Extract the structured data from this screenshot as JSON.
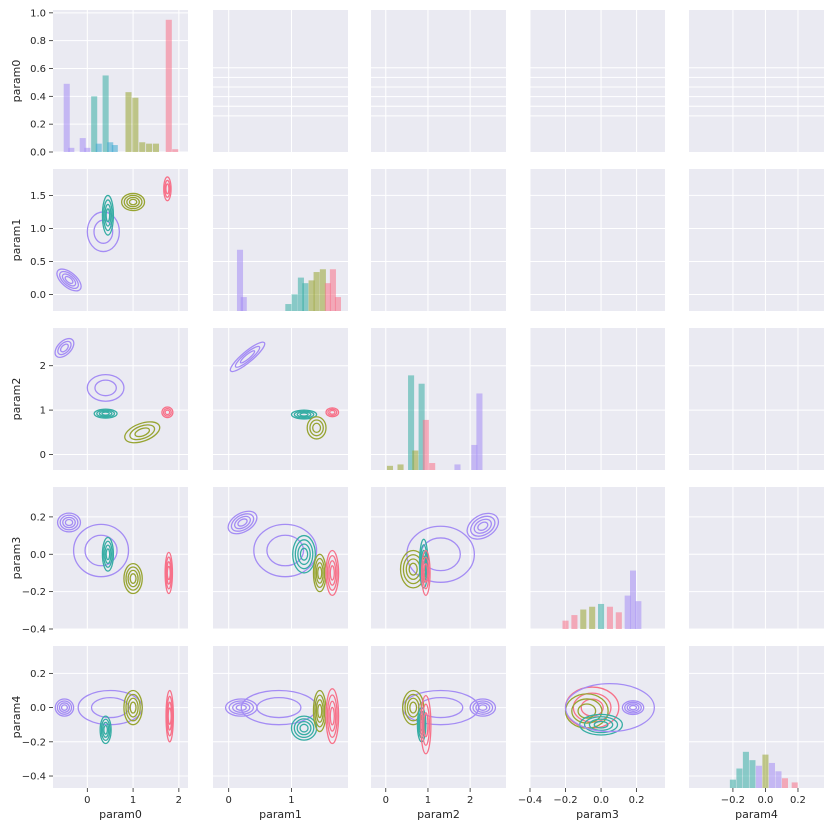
{
  "palette": {
    "c0": "#a48cf4",
    "c1": "#39a7d0",
    "c2": "#36ada4",
    "c3": "#97a431",
    "c4": "#f77189",
    "panel_bg": "#eaeaf2",
    "grid": "#ffffff"
  },
  "chart_data": {
    "type": "pairplot",
    "variables": [
      "param0",
      "param1",
      "param2",
      "param3",
      "param4"
    ],
    "hue_groups": [
      "c0",
      "c1",
      "c2",
      "c3",
      "c4"
    ],
    "ranges": {
      "param0": [
        -0.75,
        2.2
      ],
      "param1": [
        -0.25,
        1.9
      ],
      "param2": [
        -0.35,
        2.85
      ],
      "param3": [
        -0.4,
        0.36
      ],
      "param4": [
        -0.47,
        0.36
      ]
    },
    "ticks": {
      "param0": [
        "0",
        "1",
        "2"
      ],
      "param1": [
        "0",
        "1"
      ],
      "param2": [
        "0",
        "1",
        "2"
      ],
      "param3": [
        "−0.4",
        "−0.2",
        "0.0",
        "0.2"
      ],
      "param4": [
        "−0.2",
        "0.0",
        "0.2"
      ]
    },
    "y_ticks": {
      "param0": [
        "0.0",
        "0.2",
        "0.4",
        "0.6",
        "0.8",
        "1.0"
      ],
      "param1": [
        "0.0",
        "0.5",
        "1.0",
        "1.5"
      ],
      "param2": [
        "0",
        "1",
        "2"
      ],
      "param3": [
        "−0.4",
        "−0.2",
        "0.0",
        "0.2"
      ],
      "param4": [
        "−0.4",
        "−0.2",
        "0.0",
        "0.2"
      ]
    },
    "diag_histograms": [
      {
        "var": "param0",
        "ymax": 1.0,
        "bars": [
          {
            "x": -0.45,
            "h": 0.49,
            "g": "c0"
          },
          {
            "x": -0.35,
            "h": 0.03,
            "g": "c0"
          },
          {
            "x": -0.1,
            "h": 0.1,
            "g": "c0"
          },
          {
            "x": 0.0,
            "h": 0.03,
            "g": "c0"
          },
          {
            "x": 0.15,
            "h": 0.4,
            "g": "c2"
          },
          {
            "x": 0.25,
            "h": 0.06,
            "g": "c1"
          },
          {
            "x": 0.4,
            "h": 0.55,
            "g": "c2"
          },
          {
            "x": 0.5,
            "h": 0.07,
            "g": "c1"
          },
          {
            "x": 0.6,
            "h": 0.05,
            "g": "c1"
          },
          {
            "x": 0.9,
            "h": 0.43,
            "g": "c3"
          },
          {
            "x": 1.05,
            "h": 0.39,
            "g": "c3"
          },
          {
            "x": 1.2,
            "h": 0.07,
            "g": "c3"
          },
          {
            "x": 1.35,
            "h": 0.06,
            "g": "c3"
          },
          {
            "x": 1.5,
            "h": 0.06,
            "g": "c3"
          },
          {
            "x": 1.78,
            "h": 0.95,
            "g": "c4"
          },
          {
            "x": 1.92,
            "h": 0.02,
            "g": "c4"
          }
        ]
      },
      {
        "var": "param1",
        "ymax": 1.0,
        "bars": [
          {
            "x": 0.18,
            "h": 0.44,
            "g": "c0"
          },
          {
            "x": 0.24,
            "h": 0.1,
            "g": "c0"
          },
          {
            "x": 0.95,
            "h": 0.05,
            "g": "c2"
          },
          {
            "x": 1.05,
            "h": 0.12,
            "g": "c2"
          },
          {
            "x": 1.15,
            "h": 0.24,
            "g": "c2"
          },
          {
            "x": 1.22,
            "h": 0.2,
            "g": "c2"
          },
          {
            "x": 1.32,
            "h": 0.22,
            "g": "c3"
          },
          {
            "x": 1.4,
            "h": 0.28,
            "g": "c3"
          },
          {
            "x": 1.5,
            "h": 0.3,
            "g": "c3"
          },
          {
            "x": 1.58,
            "h": 0.2,
            "g": "c4"
          },
          {
            "x": 1.66,
            "h": 0.3,
            "g": "c4"
          },
          {
            "x": 1.74,
            "h": 0.1,
            "g": "c4"
          }
        ]
      },
      {
        "var": "param2",
        "ymax": 1.0,
        "bars": [
          {
            "x": 0.1,
            "h": 0.03,
            "g": "c3"
          },
          {
            "x": 0.35,
            "h": 0.04,
            "g": "c3"
          },
          {
            "x": 0.6,
            "h": 0.68,
            "g": "c2"
          },
          {
            "x": 0.7,
            "h": 0.14,
            "g": "c3"
          },
          {
            "x": 0.85,
            "h": 0.62,
            "g": "c2"
          },
          {
            "x": 0.95,
            "h": 0.36,
            "g": "c4"
          },
          {
            "x": 1.1,
            "h": 0.05,
            "g": "c4"
          },
          {
            "x": 1.7,
            "h": 0.04,
            "g": "c0"
          },
          {
            "x": 2.1,
            "h": 0.18,
            "g": "c0"
          },
          {
            "x": 2.22,
            "h": 0.55,
            "g": "c0"
          }
        ]
      },
      {
        "var": "param3",
        "ymax": 1.0,
        "bars": [
          {
            "x": -0.2,
            "h": 0.06,
            "g": "c4"
          },
          {
            "x": -0.15,
            "h": 0.1,
            "g": "c4"
          },
          {
            "x": -0.1,
            "h": 0.14,
            "g": "c3"
          },
          {
            "x": -0.05,
            "h": 0.16,
            "g": "c3"
          },
          {
            "x": 0.0,
            "h": 0.18,
            "g": "c2"
          },
          {
            "x": 0.05,
            "h": 0.16,
            "g": "c4"
          },
          {
            "x": 0.1,
            "h": 0.12,
            "g": "c4"
          },
          {
            "x": 0.15,
            "h": 0.24,
            "g": "c0"
          },
          {
            "x": 0.18,
            "h": 0.42,
            "g": "c0"
          },
          {
            "x": 0.21,
            "h": 0.2,
            "g": "c0"
          }
        ]
      },
      {
        "var": "param4",
        "ymax": 1.0,
        "bars": [
          {
            "x": -0.2,
            "h": 0.06,
            "g": "c2"
          },
          {
            "x": -0.16,
            "h": 0.14,
            "g": "c2"
          },
          {
            "x": -0.12,
            "h": 0.26,
            "g": "c2"
          },
          {
            "x": -0.08,
            "h": 0.2,
            "g": "c2"
          },
          {
            "x": -0.04,
            "h": 0.16,
            "g": "c0"
          },
          {
            "x": 0.0,
            "h": 0.24,
            "g": "c3"
          },
          {
            "x": 0.04,
            "h": 0.18,
            "g": "c0"
          },
          {
            "x": 0.08,
            "h": 0.12,
            "g": "c0"
          },
          {
            "x": 0.12,
            "h": 0.07,
            "g": "c4"
          },
          {
            "x": 0.18,
            "h": 0.04,
            "g": "c4"
          }
        ]
      }
    ],
    "kde_clusters": {
      "param0-param1": [
        {
          "g": "c0",
          "x": -0.4,
          "y": 0.22,
          "sx": 0.16,
          "sy": 0.22,
          "rot": -50,
          "n": 4
        },
        {
          "g": "c0",
          "x": 0.35,
          "y": 0.95,
          "sx": 0.35,
          "sy": 0.3,
          "rot": 0,
          "n": 2
        },
        {
          "g": "c2",
          "x": 0.45,
          "y": 1.2,
          "sx": 0.12,
          "sy": 0.3,
          "rot": 0,
          "n": 4
        },
        {
          "g": "c3",
          "x": 1.0,
          "y": 1.4,
          "sx": 0.25,
          "sy": 0.13,
          "rot": 0,
          "n": 4
        },
        {
          "g": "c4",
          "x": 1.75,
          "y": 1.6,
          "sx": 0.08,
          "sy": 0.18,
          "rot": 0,
          "n": 3
        }
      ],
      "param0-param2": [
        {
          "g": "c0",
          "x": -0.5,
          "y": 2.4,
          "sx": 0.25,
          "sy": 0.15,
          "rot": -45,
          "n": 3
        },
        {
          "g": "c0",
          "x": 0.4,
          "y": 1.5,
          "sx": 0.4,
          "sy": 0.3,
          "rot": 0,
          "n": 2
        },
        {
          "g": "c2",
          "x": 0.4,
          "y": 0.92,
          "sx": 0.25,
          "sy": 0.1,
          "rot": 0,
          "n": 4
        },
        {
          "g": "c3",
          "x": 1.2,
          "y": 0.5,
          "sx": 0.4,
          "sy": 0.2,
          "rot": -20,
          "n": 3
        },
        {
          "g": "c4",
          "x": 1.75,
          "y": 0.95,
          "sx": 0.12,
          "sy": 0.12,
          "rot": 0,
          "n": 3
        }
      ],
      "param0-param3": [
        {
          "g": "c0",
          "x": -0.4,
          "y": 0.17,
          "sx": 0.25,
          "sy": 0.05,
          "rot": 0,
          "n": 4
        },
        {
          "g": "c0",
          "x": 0.3,
          "y": 0.02,
          "sx": 0.6,
          "sy": 0.14,
          "rot": 0,
          "n": 2
        },
        {
          "g": "c2",
          "x": 0.45,
          "y": 0.0,
          "sx": 0.12,
          "sy": 0.09,
          "rot": 0,
          "n": 4
        },
        {
          "g": "c3",
          "x": 1.0,
          "y": -0.13,
          "sx": 0.2,
          "sy": 0.08,
          "rot": 0,
          "n": 4
        },
        {
          "g": "c4",
          "x": 1.78,
          "y": -0.1,
          "sx": 0.08,
          "sy": 0.11,
          "rot": 0,
          "n": 4
        }
      ],
      "param0-param4": [
        {
          "g": "c0",
          "x": -0.5,
          "y": 0.0,
          "sx": 0.2,
          "sy": 0.05,
          "rot": 0,
          "n": 4
        },
        {
          "g": "c0",
          "x": 0.5,
          "y": 0.0,
          "sx": 0.7,
          "sy": 0.1,
          "rot": 0,
          "n": 2
        },
        {
          "g": "c2",
          "x": 0.4,
          "y": -0.13,
          "sx": 0.12,
          "sy": 0.08,
          "rot": 0,
          "n": 4
        },
        {
          "g": "c3",
          "x": 1.0,
          "y": 0.0,
          "sx": 0.2,
          "sy": 0.1,
          "rot": 0,
          "n": 4
        },
        {
          "g": "c4",
          "x": 1.8,
          "y": -0.05,
          "sx": 0.08,
          "sy": 0.15,
          "rot": 0,
          "n": 4
        }
      ],
      "param1-param2": [
        {
          "g": "c0",
          "x": 0.3,
          "y": 2.2,
          "sx": 0.35,
          "sy": 0.12,
          "rot": -40,
          "n": 3
        },
        {
          "g": "c2",
          "x": 1.2,
          "y": 0.9,
          "sx": 0.2,
          "sy": 0.1,
          "rot": 0,
          "n": 4
        },
        {
          "g": "c3",
          "x": 1.4,
          "y": 0.6,
          "sx": 0.15,
          "sy": 0.25,
          "rot": 0,
          "n": 3
        },
        {
          "g": "c4",
          "x": 1.65,
          "y": 0.95,
          "sx": 0.1,
          "sy": 0.1,
          "rot": 0,
          "n": 3
        }
      ],
      "param1-param3": [
        {
          "g": "c0",
          "x": 0.22,
          "y": 0.17,
          "sx": 0.25,
          "sy": 0.05,
          "rot": -30,
          "n": 4
        },
        {
          "g": "c0",
          "x": 0.9,
          "y": 0.02,
          "sx": 0.5,
          "sy": 0.14,
          "rot": 0,
          "n": 2
        },
        {
          "g": "c2",
          "x": 1.2,
          "y": 0.0,
          "sx": 0.18,
          "sy": 0.1,
          "rot": 0,
          "n": 4
        },
        {
          "g": "c3",
          "x": 1.45,
          "y": -0.1,
          "sx": 0.1,
          "sy": 0.1,
          "rot": 0,
          "n": 4
        },
        {
          "g": "c4",
          "x": 1.65,
          "y": -0.1,
          "sx": 0.1,
          "sy": 0.12,
          "rot": 0,
          "n": 4
        }
      ],
      "param1-param4": [
        {
          "g": "c0",
          "x": 0.2,
          "y": 0.0,
          "sx": 0.25,
          "sy": 0.05,
          "rot": 0,
          "n": 4
        },
        {
          "g": "c0",
          "x": 0.8,
          "y": 0.0,
          "sx": 0.6,
          "sy": 0.1,
          "rot": 0,
          "n": 2
        },
        {
          "g": "c2",
          "x": 1.2,
          "y": -0.12,
          "sx": 0.2,
          "sy": 0.07,
          "rot": 0,
          "n": 4
        },
        {
          "g": "c3",
          "x": 1.45,
          "y": -0.02,
          "sx": 0.1,
          "sy": 0.12,
          "rot": 0,
          "n": 4
        },
        {
          "g": "c4",
          "x": 1.65,
          "y": -0.05,
          "sx": 0.1,
          "sy": 0.16,
          "rot": 0,
          "n": 4
        }
      ],
      "param2-param3": [
        {
          "g": "c0",
          "x": 2.3,
          "y": 0.15,
          "sx": 0.4,
          "sy": 0.06,
          "rot": -30,
          "n": 4
        },
        {
          "g": "c0",
          "x": 1.3,
          "y": 0.0,
          "sx": 0.8,
          "sy": 0.15,
          "rot": 0,
          "n": 2
        },
        {
          "g": "c3",
          "x": 0.65,
          "y": -0.08,
          "sx": 0.3,
          "sy": 0.1,
          "rot": 0,
          "n": 4
        },
        {
          "g": "c2",
          "x": 0.9,
          "y": -0.05,
          "sx": 0.1,
          "sy": 0.13,
          "rot": 0,
          "n": 4
        },
        {
          "g": "c4",
          "x": 0.95,
          "y": -0.1,
          "sx": 0.1,
          "sy": 0.12,
          "rot": 0,
          "n": 3
        }
      ],
      "param2-param4": [
        {
          "g": "c0",
          "x": 2.3,
          "y": 0.0,
          "sx": 0.3,
          "sy": 0.05,
          "rot": 0,
          "n": 4
        },
        {
          "g": "c0",
          "x": 1.3,
          "y": 0.0,
          "sx": 0.9,
          "sy": 0.1,
          "rot": 0,
          "n": 2
        },
        {
          "g": "c3",
          "x": 0.65,
          "y": 0.0,
          "sx": 0.25,
          "sy": 0.1,
          "rot": 0,
          "n": 4
        },
        {
          "g": "c2",
          "x": 0.85,
          "y": -0.1,
          "sx": 0.1,
          "sy": 0.1,
          "rot": 0,
          "n": 4
        },
        {
          "g": "c4",
          "x": 0.95,
          "y": -0.1,
          "sx": 0.12,
          "sy": 0.17,
          "rot": 0,
          "n": 3
        }
      ],
      "param3-param4": [
        {
          "g": "c0",
          "x": 0.18,
          "y": 0.0,
          "sx": 0.06,
          "sy": 0.04,
          "rot": 0,
          "n": 4
        },
        {
          "g": "c4",
          "x": -0.05,
          "y": 0.0,
          "sx": 0.15,
          "sy": 0.12,
          "rot": 0,
          "n": 3
        },
        {
          "g": "c3",
          "x": -0.08,
          "y": -0.02,
          "sx": 0.12,
          "sy": 0.1,
          "rot": 0,
          "n": 3
        },
        {
          "g": "c2",
          "x": 0.0,
          "y": -0.1,
          "sx": 0.12,
          "sy": 0.06,
          "rot": 0,
          "n": 4
        },
        {
          "g": "c0",
          "x": 0.05,
          "y": 0.0,
          "sx": 0.25,
          "sy": 0.14,
          "rot": 0,
          "n": 1
        }
      ]
    }
  }
}
